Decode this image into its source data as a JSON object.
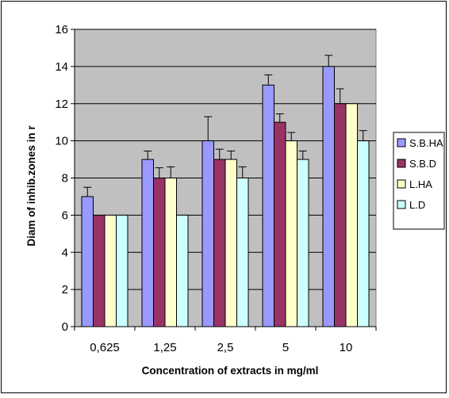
{
  "chart_data": {
    "type": "bar",
    "categories": [
      "0,625",
      "1,25",
      "2,5",
      "5",
      "10"
    ],
    "series": [
      {
        "name": "S.B.HA",
        "color": "#9999ff",
        "values": [
          7,
          9,
          10,
          13,
          14
        ],
        "errors": [
          0.5,
          0.45,
          1.3,
          0.55,
          0.6
        ]
      },
      {
        "name": "S.B.D",
        "color": "#993366",
        "values": [
          6,
          8,
          9,
          11,
          12
        ],
        "errors": [
          0,
          0.55,
          0.55,
          0.45,
          0.8
        ]
      },
      {
        "name": "L.HA",
        "color": "#ffffcc",
        "values": [
          6,
          8,
          9,
          10,
          12
        ],
        "errors": [
          0,
          0.6,
          0.45,
          0.45,
          0
        ]
      },
      {
        "name": "L.D",
        "color": "#ccffff",
        "values": [
          6,
          6,
          8,
          9,
          10
        ],
        "errors": [
          0,
          0,
          0.6,
          0.45,
          0.55
        ]
      }
    ],
    "xlabel": "Concentration of extracts in mg/ml",
    "ylabel": "Diam of inhib.zones in r",
    "ylim": [
      0,
      16
    ],
    "ytick_step": 2,
    "grid": true,
    "legend_position": "right",
    "plot_background": "#c0c0c0"
  }
}
